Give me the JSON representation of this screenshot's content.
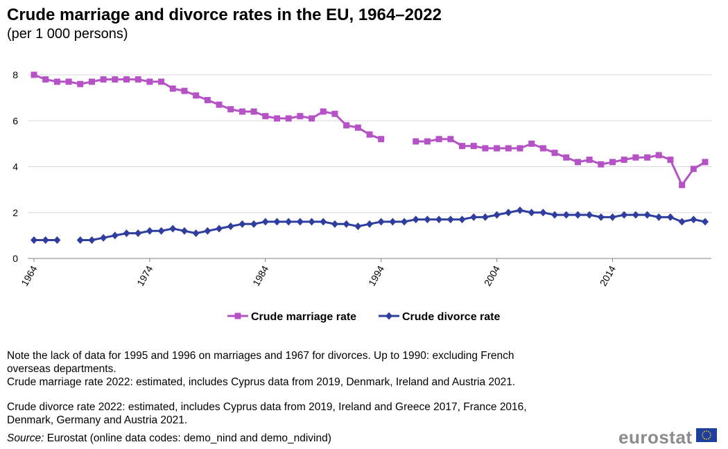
{
  "title": "Crude marriage and divorce rates in the EU, 1964–2022",
  "subtitle": "(per 1 000 persons)",
  "notes": [
    "Note the lack of data for 1995 and 1996 on marriages and 1967 for divorces. Up to 1990: excluding French",
    "overseas departments.",
    "Crude marriage rate 2022:  estimated, includes Cyprus data from 2019, Denmark, Ireland and Austria 2021.",
    "Crude divorce rate 2022: estimated, includes  Cyprus data from 2019, Ireland and Greece 2017, France 2016,",
    "Denmark, Germany and Austria 2021."
  ],
  "source": {
    "label": "Source:",
    "text": " Eurostat (online data codes: demo_nind and demo_ndivind)"
  },
  "brand": "eurostat",
  "chart_data": {
    "type": "line",
    "title": "Crude marriage and divorce rates in the EU, 1964–2022",
    "subtitle": "(per 1 000 persons)",
    "x": [
      1964,
      1965,
      1966,
      1967,
      1968,
      1969,
      1970,
      1971,
      1972,
      1973,
      1974,
      1975,
      1976,
      1977,
      1978,
      1979,
      1980,
      1981,
      1982,
      1983,
      1984,
      1985,
      1986,
      1987,
      1988,
      1989,
      1990,
      1991,
      1992,
      1993,
      1994,
      1995,
      1996,
      1997,
      1998,
      1999,
      2000,
      2001,
      2002,
      2003,
      2004,
      2005,
      2006,
      2007,
      2008,
      2009,
      2010,
      2011,
      2012,
      2013,
      2014,
      2015,
      2016,
      2017,
      2018,
      2019,
      2020,
      2021,
      2022
    ],
    "x_tick_labels": [
      "1964",
      "1974",
      "1984",
      "1994",
      "2004",
      "2014"
    ],
    "x_tick_values": [
      1964,
      1974,
      1984,
      1994,
      2004,
      2014
    ],
    "ylim": [
      0,
      8
    ],
    "y_ticks": [
      0,
      2,
      4,
      6,
      8
    ],
    "grid": true,
    "legend_position": "bottom",
    "series": [
      {
        "name": "Crude marriage rate",
        "color": "#b452c6",
        "marker": "square",
        "values": [
          8.0,
          7.8,
          7.7,
          7.7,
          7.6,
          7.7,
          7.8,
          7.8,
          7.8,
          7.8,
          7.7,
          7.7,
          7.4,
          7.3,
          7.1,
          6.9,
          6.7,
          6.5,
          6.4,
          6.4,
          6.2,
          6.1,
          6.1,
          6.2,
          6.1,
          6.4,
          6.3,
          5.8,
          5.7,
          5.4,
          5.2,
          null,
          null,
          5.1,
          5.1,
          5.2,
          5.2,
          4.9,
          4.9,
          4.8,
          4.8,
          4.8,
          4.8,
          5.0,
          4.8,
          4.6,
          4.4,
          4.2,
          4.3,
          4.1,
          4.2,
          4.3,
          4.4,
          4.4,
          4.5,
          4.3,
          3.2,
          3.9,
          4.2
        ]
      },
      {
        "name": "Crude divorce rate",
        "color": "#2e3d9e",
        "marker": "diamond",
        "values": [
          0.8,
          0.8,
          0.8,
          null,
          0.8,
          0.8,
          0.9,
          1.0,
          1.1,
          1.1,
          1.2,
          1.2,
          1.3,
          1.2,
          1.1,
          1.2,
          1.3,
          1.4,
          1.5,
          1.5,
          1.6,
          1.6,
          1.6,
          1.6,
          1.6,
          1.6,
          1.5,
          1.5,
          1.4,
          1.5,
          1.6,
          1.6,
          1.6,
          1.7,
          1.7,
          1.7,
          1.7,
          1.7,
          1.8,
          1.8,
          1.9,
          2.0,
          2.1,
          2.0,
          2.0,
          1.9,
          1.9,
          1.9,
          1.9,
          1.8,
          1.8,
          1.9,
          1.9,
          1.9,
          1.8,
          1.8,
          1.6,
          1.7,
          1.6
        ]
      }
    ]
  }
}
